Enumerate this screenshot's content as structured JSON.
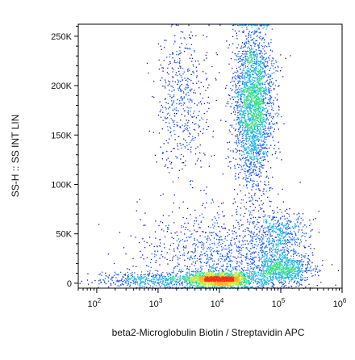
{
  "chart_data": {
    "type": "scatter",
    "title": "",
    "xlabel": "beta2-Microglobulin Biotin / Streptavidin APC",
    "ylabel": "SS-H :: SS INT LIN",
    "x_scale": "log",
    "xlim": [
      50,
      1000000
    ],
    "x_ticks": [
      {
        "value": 100,
        "mantissa": "10",
        "exponent": "2"
      },
      {
        "value": 1000,
        "mantissa": "10",
        "exponent": "3"
      },
      {
        "value": 10000,
        "mantissa": "10",
        "exponent": "4"
      },
      {
        "value": 100000,
        "mantissa": "10",
        "exponent": "5"
      },
      {
        "value": 1000000,
        "mantissa": "10",
        "exponent": "6"
      }
    ],
    "y_scale": "linear",
    "ylim": [
      -5000,
      262144
    ],
    "y_ticks": [
      {
        "value": 0,
        "label": "0"
      },
      {
        "value": 50000,
        "label": "50K"
      },
      {
        "value": 100000,
        "label": "100K"
      },
      {
        "value": 150000,
        "label": "150K"
      },
      {
        "value": 200000,
        "label": "200K"
      },
      {
        "value": 250000,
        "label": "250K"
      }
    ],
    "grid": false,
    "legend": "none",
    "density_colors": [
      "#1010c8",
      "#1a5cff",
      "#1fb4e6",
      "#3ee08a",
      "#c8e83a",
      "#ffb020",
      "#ff3010"
    ],
    "populations": [
      {
        "x_center": 35000,
        "x_spread_log": 0.16,
        "y_center": 180000,
        "y_spread": 40000,
        "count": 2600
      },
      {
        "x_center": 2500,
        "x_spread_log": 0.22,
        "y_center": 185000,
        "y_spread": 35000,
        "count": 500
      },
      {
        "x_center": 9000,
        "x_spread_log": 0.3,
        "y_center": 4000,
        "y_spread": 4000,
        "count": 1700
      },
      {
        "x_center": 100000,
        "x_spread_log": 0.25,
        "y_center": 14000,
        "y_spread": 8000,
        "count": 900
      },
      {
        "x_center": 90000,
        "x_spread_log": 0.25,
        "y_center": 50000,
        "y_spread": 12000,
        "count": 500
      },
      {
        "x_center": 10000,
        "x_spread_log": 0.65,
        "y_center": 30000,
        "y_spread": 25000,
        "count": 1100
      },
      {
        "x_center": 600,
        "x_spread_log": 0.4,
        "y_center": 4000,
        "y_spread": 4000,
        "count": 400
      }
    ]
  }
}
